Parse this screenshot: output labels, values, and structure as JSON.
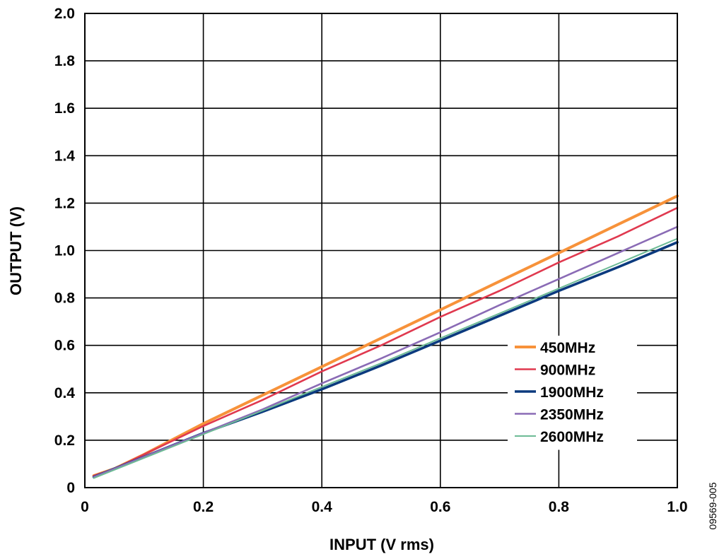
{
  "chart_data": {
    "type": "line",
    "xlabel": "INPUT (V rms)",
    "ylabel": "OUTPUT (V)",
    "xlim": [
      0,
      1.0
    ],
    "ylim": [
      0,
      2.0
    ],
    "x_ticks": [
      "0",
      "0.2",
      "0.4",
      "0.6",
      "0.8",
      "1.0"
    ],
    "y_ticks": [
      "0",
      "0.2",
      "0.4",
      "0.6",
      "0.8",
      "1.0",
      "1.2",
      "1.4",
      "1.6",
      "1.8",
      "2.0"
    ],
    "grid": true,
    "legend_position": "right",
    "figure_id": "09569-005",
    "series": [
      {
        "name": "450MHz",
        "color": "#F7923A",
        "x": [
          0.015,
          0.05,
          0.1,
          0.2,
          0.3,
          0.4,
          0.5,
          0.6,
          0.7,
          0.8,
          0.9,
          1.0
        ],
        "y": [
          0.05,
          0.08,
          0.14,
          0.27,
          0.39,
          0.51,
          0.63,
          0.75,
          0.87,
          0.99,
          1.11,
          1.23
        ]
      },
      {
        "name": "900MHz",
        "color": "#E0394F",
        "x": [
          0.015,
          0.05,
          0.1,
          0.2,
          0.3,
          0.4,
          0.5,
          0.6,
          0.7,
          0.8,
          0.9,
          1.0
        ],
        "y": [
          0.05,
          0.08,
          0.14,
          0.26,
          0.37,
          0.49,
          0.6,
          0.72,
          0.83,
          0.95,
          1.06,
          1.18
        ]
      },
      {
        "name": "1900MHz",
        "color": "#0B3A7E",
        "x": [
          0.015,
          0.05,
          0.1,
          0.2,
          0.3,
          0.4,
          0.5,
          0.6,
          0.7,
          0.8,
          0.9,
          1.0
        ],
        "y": [
          0.045,
          0.08,
          0.13,
          0.23,
          0.32,
          0.415,
          0.515,
          0.62,
          0.725,
          0.83,
          0.93,
          1.035
        ]
      },
      {
        "name": "2350MHz",
        "color": "#8A6BB5",
        "x": [
          0.015,
          0.05,
          0.1,
          0.2,
          0.3,
          0.4,
          0.5,
          0.6,
          0.7,
          0.8,
          0.9,
          1.0
        ],
        "y": [
          0.045,
          0.08,
          0.13,
          0.23,
          0.33,
          0.44,
          0.545,
          0.655,
          0.77,
          0.88,
          0.99,
          1.1
        ]
      },
      {
        "name": "2600MHz",
        "color": "#6DBB96",
        "x": [
          0.015,
          0.05,
          0.1,
          0.2,
          0.3,
          0.4,
          0.5,
          0.6,
          0.7,
          0.8,
          0.9,
          1.0
        ],
        "y": [
          0.04,
          0.075,
          0.125,
          0.225,
          0.325,
          0.425,
          0.525,
          0.63,
          0.735,
          0.84,
          0.945,
          1.05
        ]
      }
    ]
  }
}
